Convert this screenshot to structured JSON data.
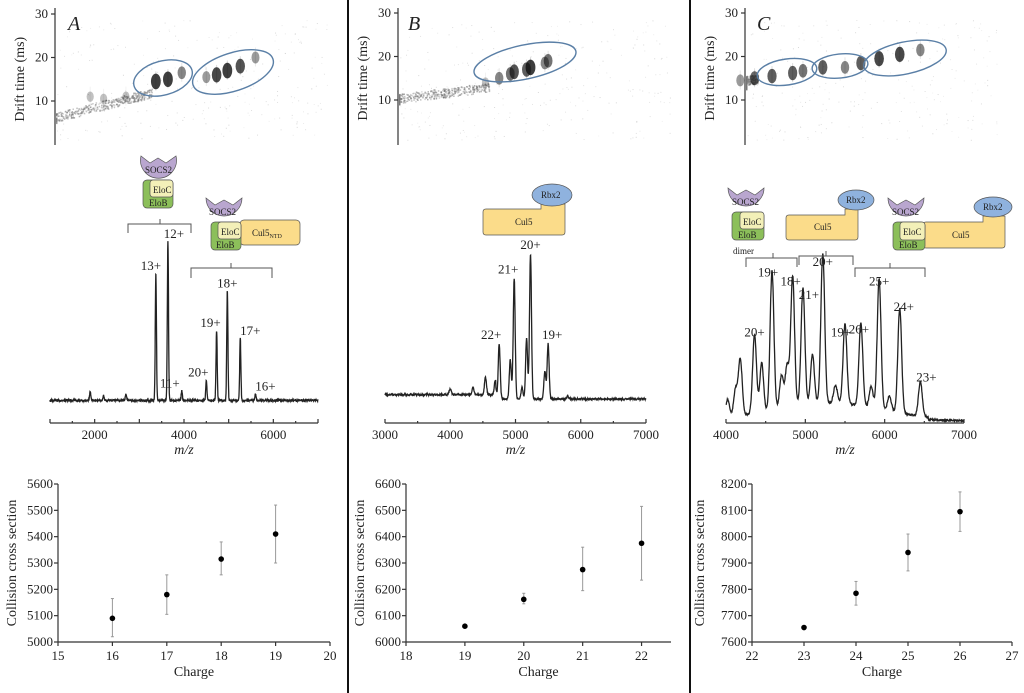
{
  "panels": [
    {
      "letter": "A"
    },
    {
      "letter": "B"
    },
    {
      "letter": "C"
    }
  ],
  "complexes": {
    "socs2": "SOCS2",
    "eloc": "EloC",
    "elob": "EloB",
    "cul5": "Cul5",
    "cul5ntd_main": "Cul5",
    "cul5ntd_sub": "NTD",
    "rbx2": "Rbx2",
    "dimer": "dimer"
  },
  "colors": {
    "socs2": "#b9a6cf",
    "eloc": "#f3f0b8",
    "elob": "#8cbf5a",
    "cul5": "#fbdc8a",
    "rbx2": "#8fb2de",
    "ellipse": "#5a7fa6",
    "trace": "#222222"
  },
  "chart_data": [
    {
      "panel": "A",
      "type": "heatmap",
      "ylabel": "Drift time (ms)",
      "yticks": [
        10,
        20,
        30
      ],
      "ylim": [
        0,
        30
      ]
    },
    {
      "panel": "A",
      "type": "line",
      "xlabel": "m/z",
      "xlim": [
        1000,
        7000
      ],
      "xticks": [
        2000,
        4000,
        6000
      ],
      "peaks": [
        {
          "mz": 1900,
          "rel": 6,
          "label": ""
        },
        {
          "mz": 2200,
          "rel": 3,
          "label": ""
        },
        {
          "mz": 2700,
          "rel": 4,
          "label": ""
        },
        {
          "mz": 3370,
          "rel": 80,
          "label": "13+"
        },
        {
          "mz": 3640,
          "rel": 100,
          "label": "12+"
        },
        {
          "mz": 3950,
          "rel": 6,
          "label": "11+"
        },
        {
          "mz": 4500,
          "rel": 13,
          "label": "20+"
        },
        {
          "mz": 4730,
          "rel": 44,
          "label": "19+"
        },
        {
          "mz": 4970,
          "rel": 69,
          "label": "18+"
        },
        {
          "mz": 5260,
          "rel": 39,
          "label": "17+"
        },
        {
          "mz": 5600,
          "rel": 4,
          "label": "16+"
        }
      ]
    },
    {
      "panel": "A",
      "type": "scatter",
      "xlabel": "Charge",
      "ylabel": "Collision cross section",
      "xlim": [
        15,
        20
      ],
      "ylim": [
        5000,
        5600
      ],
      "xticks": [
        15,
        16,
        17,
        18,
        19,
        20
      ],
      "yticks": [
        5000,
        5100,
        5200,
        5300,
        5400,
        5500,
        5600
      ],
      "x": [
        16,
        17,
        18,
        19
      ],
      "y": [
        5090,
        5180,
        5315,
        5410
      ],
      "err_low": [
        5020,
        5105,
        5255,
        5300
      ],
      "err_high": [
        5165,
        5255,
        5380,
        5520
      ]
    },
    {
      "panel": "B",
      "type": "heatmap",
      "ylabel": "Drift time (ms)",
      "yticks": [
        10,
        20,
        30
      ],
      "ylim": [
        0,
        30
      ]
    },
    {
      "panel": "B",
      "type": "line",
      "xlabel": "m/z",
      "xlim": [
        3000,
        7000
      ],
      "xticks": [
        3000,
        4000,
        5000,
        6000,
        7000
      ],
      "peaks": [
        {
          "mz": 4000,
          "rel": 4,
          "label": ""
        },
        {
          "mz": 4350,
          "rel": 5,
          "label": ""
        },
        {
          "mz": 4540,
          "rel": 12,
          "label": ""
        },
        {
          "mz": 4690,
          "rel": 10,
          "label": ""
        },
        {
          "mz": 4750,
          "rel": 38,
          "label": "22+"
        },
        {
          "mz": 4920,
          "rel": 27,
          "label": ""
        },
        {
          "mz": 4980,
          "rel": 83,
          "label": "21+"
        },
        {
          "mz": 5100,
          "rel": 8,
          "label": ""
        },
        {
          "mz": 5170,
          "rel": 42,
          "label": ""
        },
        {
          "mz": 5230,
          "rel": 100,
          "label": "20+"
        },
        {
          "mz": 5450,
          "rel": 19,
          "label": ""
        },
        {
          "mz": 5500,
          "rel": 38,
          "label": "19+"
        },
        {
          "mz": 5800,
          "rel": 2,
          "label": ""
        }
      ]
    },
    {
      "panel": "B",
      "type": "scatter",
      "xlabel": "Charge",
      "ylabel": "Collision cross section",
      "xlim": [
        18,
        22.5
      ],
      "ylim": [
        6000,
        6600
      ],
      "xticks": [
        18,
        19,
        20,
        21,
        22
      ],
      "yticks": [
        6000,
        6100,
        6200,
        6300,
        6400,
        6500,
        6600
      ],
      "x": [
        19,
        20,
        21,
        22
      ],
      "y": [
        6060,
        6162,
        6275,
        6375
      ],
      "err_low": [
        6060,
        6145,
        6195,
        6235
      ],
      "err_high": [
        6060,
        6185,
        6360,
        6515
      ]
    },
    {
      "panel": "C",
      "type": "heatmap",
      "ylabel": "Drift time (ms)",
      "yticks": [
        10,
        20,
        30
      ],
      "ylim": [
        0,
        30
      ]
    },
    {
      "panel": "C",
      "type": "line",
      "xlabel": "m/z",
      "xlim": [
        4000,
        7000
      ],
      "xticks": [
        4000,
        5000,
        6000,
        7000
      ],
      "peaks": [
        {
          "mz": 4020,
          "rel": 12,
          "label": ""
        },
        {
          "mz": 4120,
          "rel": 18,
          "label": ""
        },
        {
          "mz": 4180,
          "rel": 38,
          "label": ""
        },
        {
          "mz": 4360,
          "rel": 53,
          "label": "20+"
        },
        {
          "mz": 4450,
          "rel": 33,
          "label": ""
        },
        {
          "mz": 4580,
          "rel": 93,
          "label": "19+"
        },
        {
          "mz": 4700,
          "rel": 22,
          "label": ""
        },
        {
          "mz": 4770,
          "rel": 28,
          "label": ""
        },
        {
          "mz": 4840,
          "rel": 87,
          "label": "18+"
        },
        {
          "mz": 4970,
          "rel": 78,
          "label": "21+"
        },
        {
          "mz": 5090,
          "rel": 33,
          "label": ""
        },
        {
          "mz": 5220,
          "rel": 100,
          "label": "20+"
        },
        {
          "mz": 5380,
          "rel": 12,
          "label": ""
        },
        {
          "mz": 5500,
          "rel": 53,
          "label": "19+"
        },
        {
          "mz": 5700,
          "rel": 55,
          "label": "26+"
        },
        {
          "mz": 5830,
          "rel": 14,
          "label": ""
        },
        {
          "mz": 5930,
          "rel": 87,
          "label": "25+"
        },
        {
          "mz": 6060,
          "rel": 10,
          "label": ""
        },
        {
          "mz": 6190,
          "rel": 70,
          "label": "24+"
        },
        {
          "mz": 6450,
          "rel": 23,
          "label": "23+"
        }
      ]
    },
    {
      "panel": "C",
      "type": "scatter",
      "xlabel": "Charge",
      "ylabel": "Collision cross section",
      "xlim": [
        22,
        27
      ],
      "ylim": [
        7600,
        8200
      ],
      "xticks": [
        22,
        23,
        24,
        25,
        26,
        27
      ],
      "yticks": [
        7600,
        7700,
        7800,
        7900,
        8000,
        8100,
        8200
      ],
      "x": [
        23,
        24,
        25,
        26
      ],
      "y": [
        7655,
        7785,
        7940,
        8095
      ],
      "err_low": [
        7650,
        7740,
        7870,
        8020
      ],
      "err_high": [
        7660,
        7830,
        8010,
        8170
      ]
    }
  ]
}
